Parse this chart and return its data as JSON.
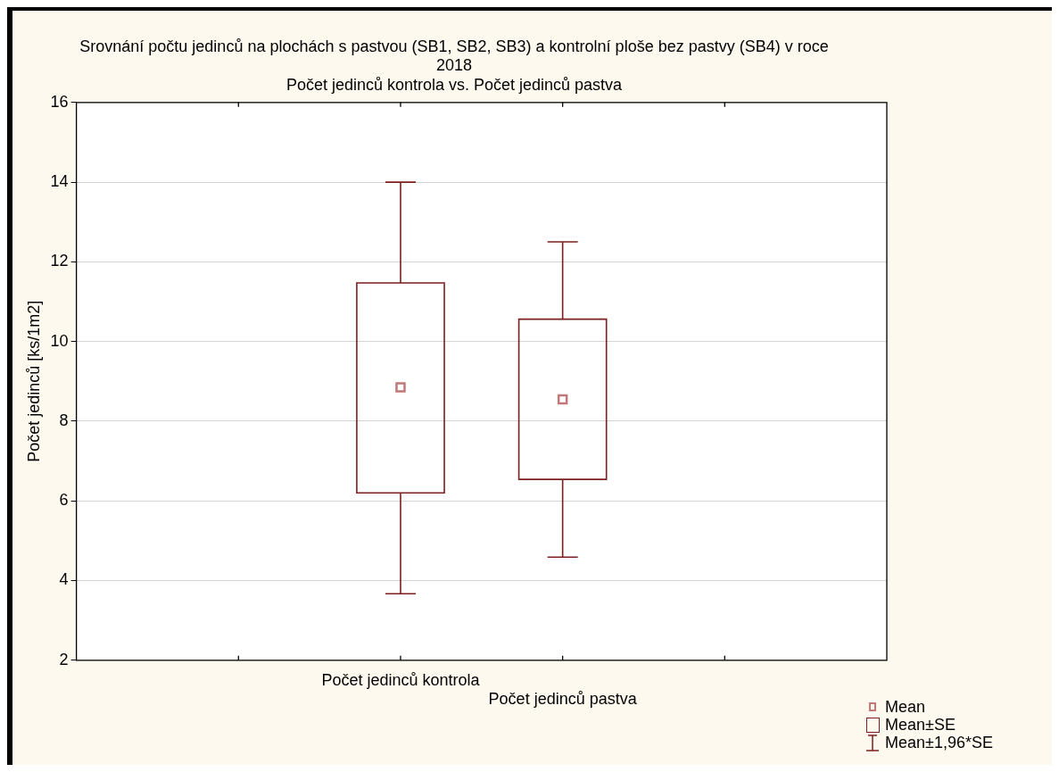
{
  "chart_data": {
    "type": "box",
    "title": "Srovnání počtu jedinců na plochách s pastvou (SB1, SB2, SB3) a kontrolní ploše bez pastvy (SB4) v roce 2018",
    "subtitle": "Počet jedinců kontrola vs. Počet jedinců pastva",
    "ylabel": "Počet jedinců [ks/1m2]",
    "categories": [
      "Počet jedinců kontrola",
      "Počet jedinců pastva"
    ],
    "boxes": [
      {
        "low": 3.67,
        "q1": 6.2,
        "q3": 11.47,
        "high": 14,
        "mean": 8.85
      },
      {
        "low": 4.59,
        "q1": 6.54,
        "q3": 10.56,
        "high": 12.5,
        "mean": 8.55
      }
    ],
    "color": "#7b1f1f",
    "colors": [
      "#7b1f1f",
      "#7b1f1f"
    ],
    "ylim": [
      2,
      16
    ],
    "yticks": [
      2,
      4,
      6,
      8,
      10,
      12,
      14,
      16
    ],
    "grid": "y",
    "marker": "square",
    "annotations": [
      "Mean",
      "Mean±SE",
      "Mean±1,96*SE"
    ]
  }
}
